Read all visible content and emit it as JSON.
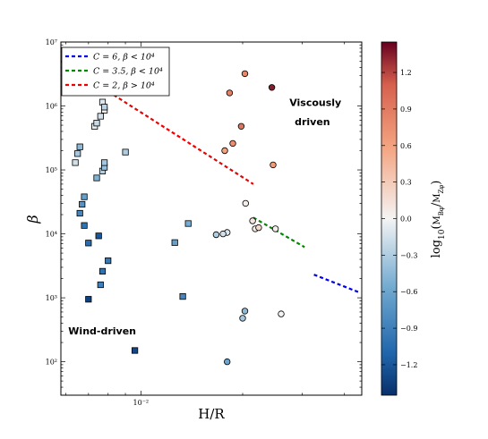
{
  "chart_data": {
    "type": "scatter",
    "xlabel": "H/R",
    "ylabel": "β",
    "xscale": "log",
    "yscale": "log",
    "xlim": [
      0.0058,
      0.045
    ],
    "ylim": [
      30,
      10000000
    ],
    "x_tick_labels": [
      {
        "value": 0.01,
        "label": "10⁻²"
      }
    ],
    "y_tick_labels": [
      {
        "value": 100,
        "label": "10²"
      },
      {
        "value": 1000,
        "label": "10³"
      },
      {
        "value": 10000,
        "label": "10⁴"
      },
      {
        "value": 100000,
        "label": "10⁵"
      },
      {
        "value": 1000000,
        "label": "10⁶"
      },
      {
        "value": 10000000,
        "label": "10⁷"
      }
    ],
    "legend": {
      "placement": "top-left",
      "entries": [
        {
          "label": "C = 6,  β < 10⁴",
          "color": "#0000ee",
          "style": "dashed"
        },
        {
          "label": "C = 3.5,  β < 10⁴",
          "color": "#008800",
          "style": "dashed"
        },
        {
          "label": "C = 2,  β > 10⁴",
          "color": "#ee0000",
          "style": "dashed"
        }
      ]
    },
    "annotations": [
      {
        "text": "Viscously",
        "x": 0.0275,
        "y": 1000000
      },
      {
        "text": "driven",
        "x": 0.0285,
        "y": 500000
      },
      {
        "text": "Wind-driven",
        "x": 0.0061,
        "y": 270
      }
    ],
    "lines": [
      {
        "name": "C = 2, β > 10⁴",
        "color": "#ee0000",
        "points": [
          [
            0.0058,
            5000000
          ],
          [
            0.0215,
            60000
          ]
        ]
      },
      {
        "name": "C = 3.5, β < 10⁴",
        "color": "#008800",
        "points": [
          [
            0.0215,
            18000
          ],
          [
            0.0305,
            6200
          ]
        ]
      },
      {
        "name": "C = 6, β < 10⁴",
        "color": "#0000ee",
        "points": [
          [
            0.0325,
            2300
          ],
          [
            0.0445,
            1200
          ]
        ]
      }
    ],
    "colorbar": {
      "label": "log10(M_Bφ / M_Zφ)",
      "min": -1.45,
      "max": 1.45,
      "ticks": [
        1.2,
        0.9,
        0.6,
        0.3,
        0.0,
        -0.3,
        -0.6,
        -0.9,
        -1.2
      ],
      "tick_labels": [
        "1.2",
        "0.9",
        "0.6",
        "0.3",
        "0.0",
        "−0.3",
        "−0.6",
        "−0.9",
        "−1.2"
      ]
    },
    "series": [
      {
        "name": "",
        "marker": "square",
        "points": [
          {
            "x": 0.0064,
            "y": 130000,
            "c": -0.15
          },
          {
            "x": 0.0065,
            "y": 180000,
            "c": -0.35
          },
          {
            "x": 0.0066,
            "y": 230000,
            "c": -0.45
          },
          {
            "x": 0.0066,
            "y": 21000,
            "c": -0.85
          },
          {
            "x": 0.0067,
            "y": 29000,
            "c": -0.75
          },
          {
            "x": 0.0068,
            "y": 38000,
            "c": -0.65
          },
          {
            "x": 0.0068,
            "y": 13500,
            "c": -1.0
          },
          {
            "x": 0.007,
            "y": 7200,
            "c": -1.05
          },
          {
            "x": 0.007,
            "y": 950,
            "c": -1.35
          },
          {
            "x": 0.0073,
            "y": 480000,
            "c": -0.05
          },
          {
            "x": 0.0074,
            "y": 540000,
            "c": -0.2
          },
          {
            "x": 0.0074,
            "y": 75000,
            "c": -0.5
          },
          {
            "x": 0.0076,
            "y": 690000,
            "c": -0.15
          },
          {
            "x": 0.0077,
            "y": 1150000,
            "c": -0.1
          },
          {
            "x": 0.0078,
            "y": 860000,
            "c": 0.05
          },
          {
            "x": 0.0078,
            "y": 960000,
            "c": -0.25
          },
          {
            "x": 0.0077,
            "y": 96000,
            "c": -0.3
          },
          {
            "x": 0.0078,
            "y": 110000,
            "c": -0.4
          },
          {
            "x": 0.0078,
            "y": 130000,
            "c": -0.35
          },
          {
            "x": 0.0075,
            "y": 9300,
            "c": -1.2
          },
          {
            "x": 0.0077,
            "y": 2600,
            "c": -1.0
          },
          {
            "x": 0.0076,
            "y": 1600,
            "c": -0.9
          },
          {
            "x": 0.008,
            "y": 3800,
            "c": -0.95
          },
          {
            "x": 0.009,
            "y": 190000,
            "c": -0.3
          },
          {
            "x": 0.0096,
            "y": 150,
            "c": -1.3
          },
          {
            "x": 0.0126,
            "y": 7300,
            "c": -0.65
          },
          {
            "x": 0.0133,
            "y": 1050,
            "c": -0.85
          },
          {
            "x": 0.0138,
            "y": 14500,
            "c": -0.55
          }
        ]
      },
      {
        "name": "",
        "marker": "circle",
        "points": [
          {
            "x": 0.0177,
            "y": 200000,
            "c": 0.6
          },
          {
            "x": 0.0183,
            "y": 1600000,
            "c": 0.85
          },
          {
            "x": 0.0187,
            "y": 260000,
            "c": 0.75
          },
          {
            "x": 0.0198,
            "y": 480000,
            "c": 0.95
          },
          {
            "x": 0.0203,
            "y": 3200000,
            "c": 0.8
          },
          {
            "x": 0.0214,
            "y": 16000,
            "c": 0.1
          },
          {
            "x": 0.0204,
            "y": 30000,
            "c": 0.05
          },
          {
            "x": 0.0218,
            "y": 12000,
            "c": 0.05
          },
          {
            "x": 0.0223,
            "y": 12500,
            "c": 0.2
          },
          {
            "x": 0.0244,
            "y": 1950000,
            "c": 1.35
          },
          {
            "x": 0.0246,
            "y": 120000,
            "c": 0.65
          },
          {
            "x": 0.018,
            "y": 10500,
            "c": -0.1
          },
          {
            "x": 0.0175,
            "y": 10000,
            "c": -0.15
          },
          {
            "x": 0.0167,
            "y": 9700,
            "c": -0.3
          },
          {
            "x": 0.025,
            "y": 12000,
            "c": 0.05
          },
          {
            "x": 0.02,
            "y": 480,
            "c": -0.35
          },
          {
            "x": 0.0203,
            "y": 620,
            "c": -0.45
          },
          {
            "x": 0.026,
            "y": 560,
            "c": 0.0
          },
          {
            "x": 0.018,
            "y": 100,
            "c": -0.6
          }
        ]
      }
    ]
  }
}
